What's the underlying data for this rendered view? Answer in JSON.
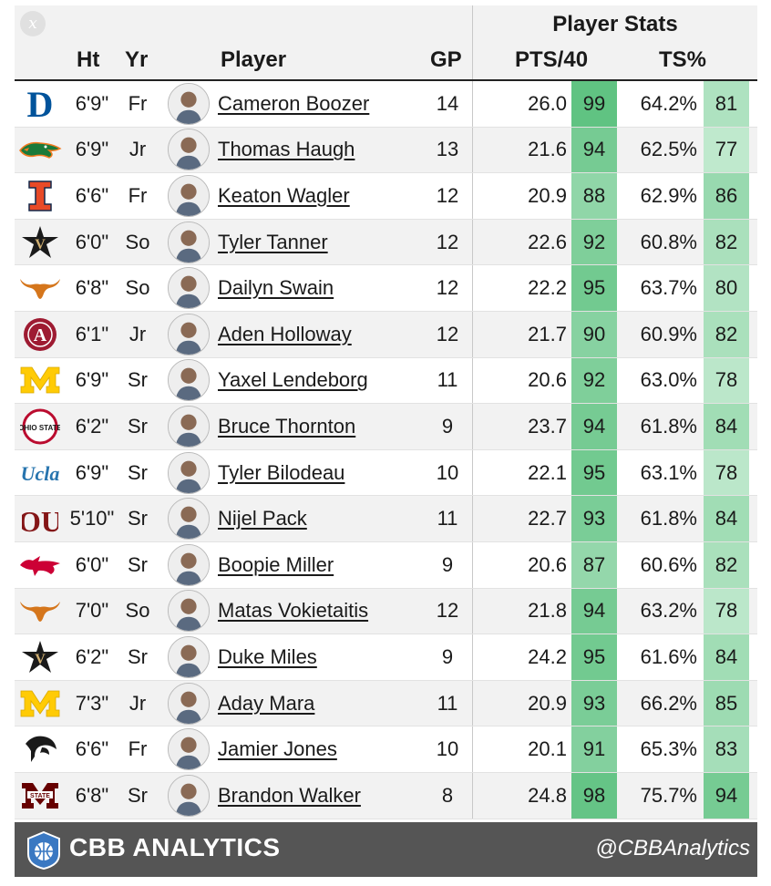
{
  "header": {
    "close_glyph": "x",
    "group_title": "Player Stats",
    "columns": {
      "ht": "Ht",
      "yr": "Yr",
      "player": "Player",
      "gp": "GP",
      "pts": "PTS/40",
      "ts": "TS%"
    }
  },
  "colors": {
    "pct_high": "#5cc17f",
    "pct_low": "#c8ecd4",
    "row_alt": "#f2f2f2",
    "footer_bg": "#555555"
  },
  "rows": [
    {
      "team_logo": "duke-logo",
      "ht": "6'9\"",
      "yr": "Fr",
      "player": "Cameron Boozer",
      "gp": "14",
      "pts": "26.0",
      "pts_pct": "99",
      "ts": "64.2%",
      "ts_pct": "81"
    },
    {
      "team_logo": "florida-logo",
      "ht": "6'9\"",
      "yr": "Jr",
      "player": "Thomas Haugh",
      "gp": "13",
      "pts": "21.6",
      "pts_pct": "94",
      "ts": "62.5%",
      "ts_pct": "77"
    },
    {
      "team_logo": "illinois-logo",
      "ht": "6'6\"",
      "yr": "Fr",
      "player": "Keaton Wagler",
      "gp": "12",
      "pts": "20.9",
      "pts_pct": "88",
      "ts": "62.9%",
      "ts_pct": "86"
    },
    {
      "team_logo": "vanderbilt-logo",
      "ht": "6'0\"",
      "yr": "So",
      "player": "Tyler Tanner",
      "gp": "12",
      "pts": "22.6",
      "pts_pct": "92",
      "ts": "60.8%",
      "ts_pct": "82"
    },
    {
      "team_logo": "texas-logo",
      "ht": "6'8\"",
      "yr": "So",
      "player": "Dailyn Swain",
      "gp": "12",
      "pts": "22.2",
      "pts_pct": "95",
      "ts": "63.7%",
      "ts_pct": "80"
    },
    {
      "team_logo": "alabama-logo",
      "ht": "6'1\"",
      "yr": "Jr",
      "player": "Aden Holloway",
      "gp": "12",
      "pts": "21.7",
      "pts_pct": "90",
      "ts": "60.9%",
      "ts_pct": "82"
    },
    {
      "team_logo": "michigan-logo",
      "ht": "6'9\"",
      "yr": "Sr",
      "player": "Yaxel Lendeborg",
      "gp": "11",
      "pts": "20.6",
      "pts_pct": "92",
      "ts": "63.0%",
      "ts_pct": "78"
    },
    {
      "team_logo": "ohio-state-logo",
      "ht": "6'2\"",
      "yr": "Sr",
      "player": "Bruce Thornton",
      "gp": "9",
      "pts": "23.7",
      "pts_pct": "94",
      "ts": "61.8%",
      "ts_pct": "84"
    },
    {
      "team_logo": "ucla-logo",
      "ht": "6'9\"",
      "yr": "Sr",
      "player": "Tyler Bilodeau",
      "gp": "10",
      "pts": "22.1",
      "pts_pct": "95",
      "ts": "63.1%",
      "ts_pct": "78"
    },
    {
      "team_logo": "oklahoma-logo",
      "ht": "5'10\"",
      "yr": "Sr",
      "player": "Nijel Pack",
      "gp": "11",
      "pts": "22.7",
      "pts_pct": "93",
      "ts": "61.8%",
      "ts_pct": "84"
    },
    {
      "team_logo": "smu-logo",
      "ht": "6'0\"",
      "yr": "Sr",
      "player": "Boopie Miller",
      "gp": "9",
      "pts": "20.6",
      "pts_pct": "87",
      "ts": "60.6%",
      "ts_pct": "82"
    },
    {
      "team_logo": "texas-logo",
      "ht": "7'0\"",
      "yr": "So",
      "player": "Matas Vokietaitis",
      "gp": "12",
      "pts": "21.8",
      "pts_pct": "94",
      "ts": "63.2%",
      "ts_pct": "78"
    },
    {
      "team_logo": "vanderbilt-logo",
      "ht": "6'2\"",
      "yr": "Sr",
      "player": "Duke Miles",
      "gp": "9",
      "pts": "24.2",
      "pts_pct": "95",
      "ts": "61.6%",
      "ts_pct": "84"
    },
    {
      "team_logo": "michigan-logo",
      "ht": "7'3\"",
      "yr": "Jr",
      "player": "Aday Mara",
      "gp": "11",
      "pts": "20.9",
      "pts_pct": "93",
      "ts": "66.2%",
      "ts_pct": "85"
    },
    {
      "team_logo": "providence-logo",
      "ht": "6'6\"",
      "yr": "Fr",
      "player": "Jamier Jones",
      "gp": "10",
      "pts": "20.1",
      "pts_pct": "91",
      "ts": "65.3%",
      "ts_pct": "83"
    },
    {
      "team_logo": "mississippi-state-logo",
      "ht": "6'8\"",
      "yr": "Sr",
      "player": "Brandon Walker",
      "gp": "8",
      "pts": "24.8",
      "pts_pct": "98",
      "ts": "75.7%",
      "ts_pct": "94"
    }
  ],
  "logo_text": {
    "duke": "D",
    "illinois": "I",
    "vanderbilt": "V",
    "michigan": "M",
    "ohio_state": "OHIO STATE",
    "ucla": "Ucla",
    "oklahoma": "OU",
    "alabama": "A",
    "mississippi_state": "STATE"
  },
  "footer": {
    "brand": "CBB ANALYTICS",
    "handle": "@CBBAnalytics",
    "brand_icon": "basketball-shield-icon"
  }
}
